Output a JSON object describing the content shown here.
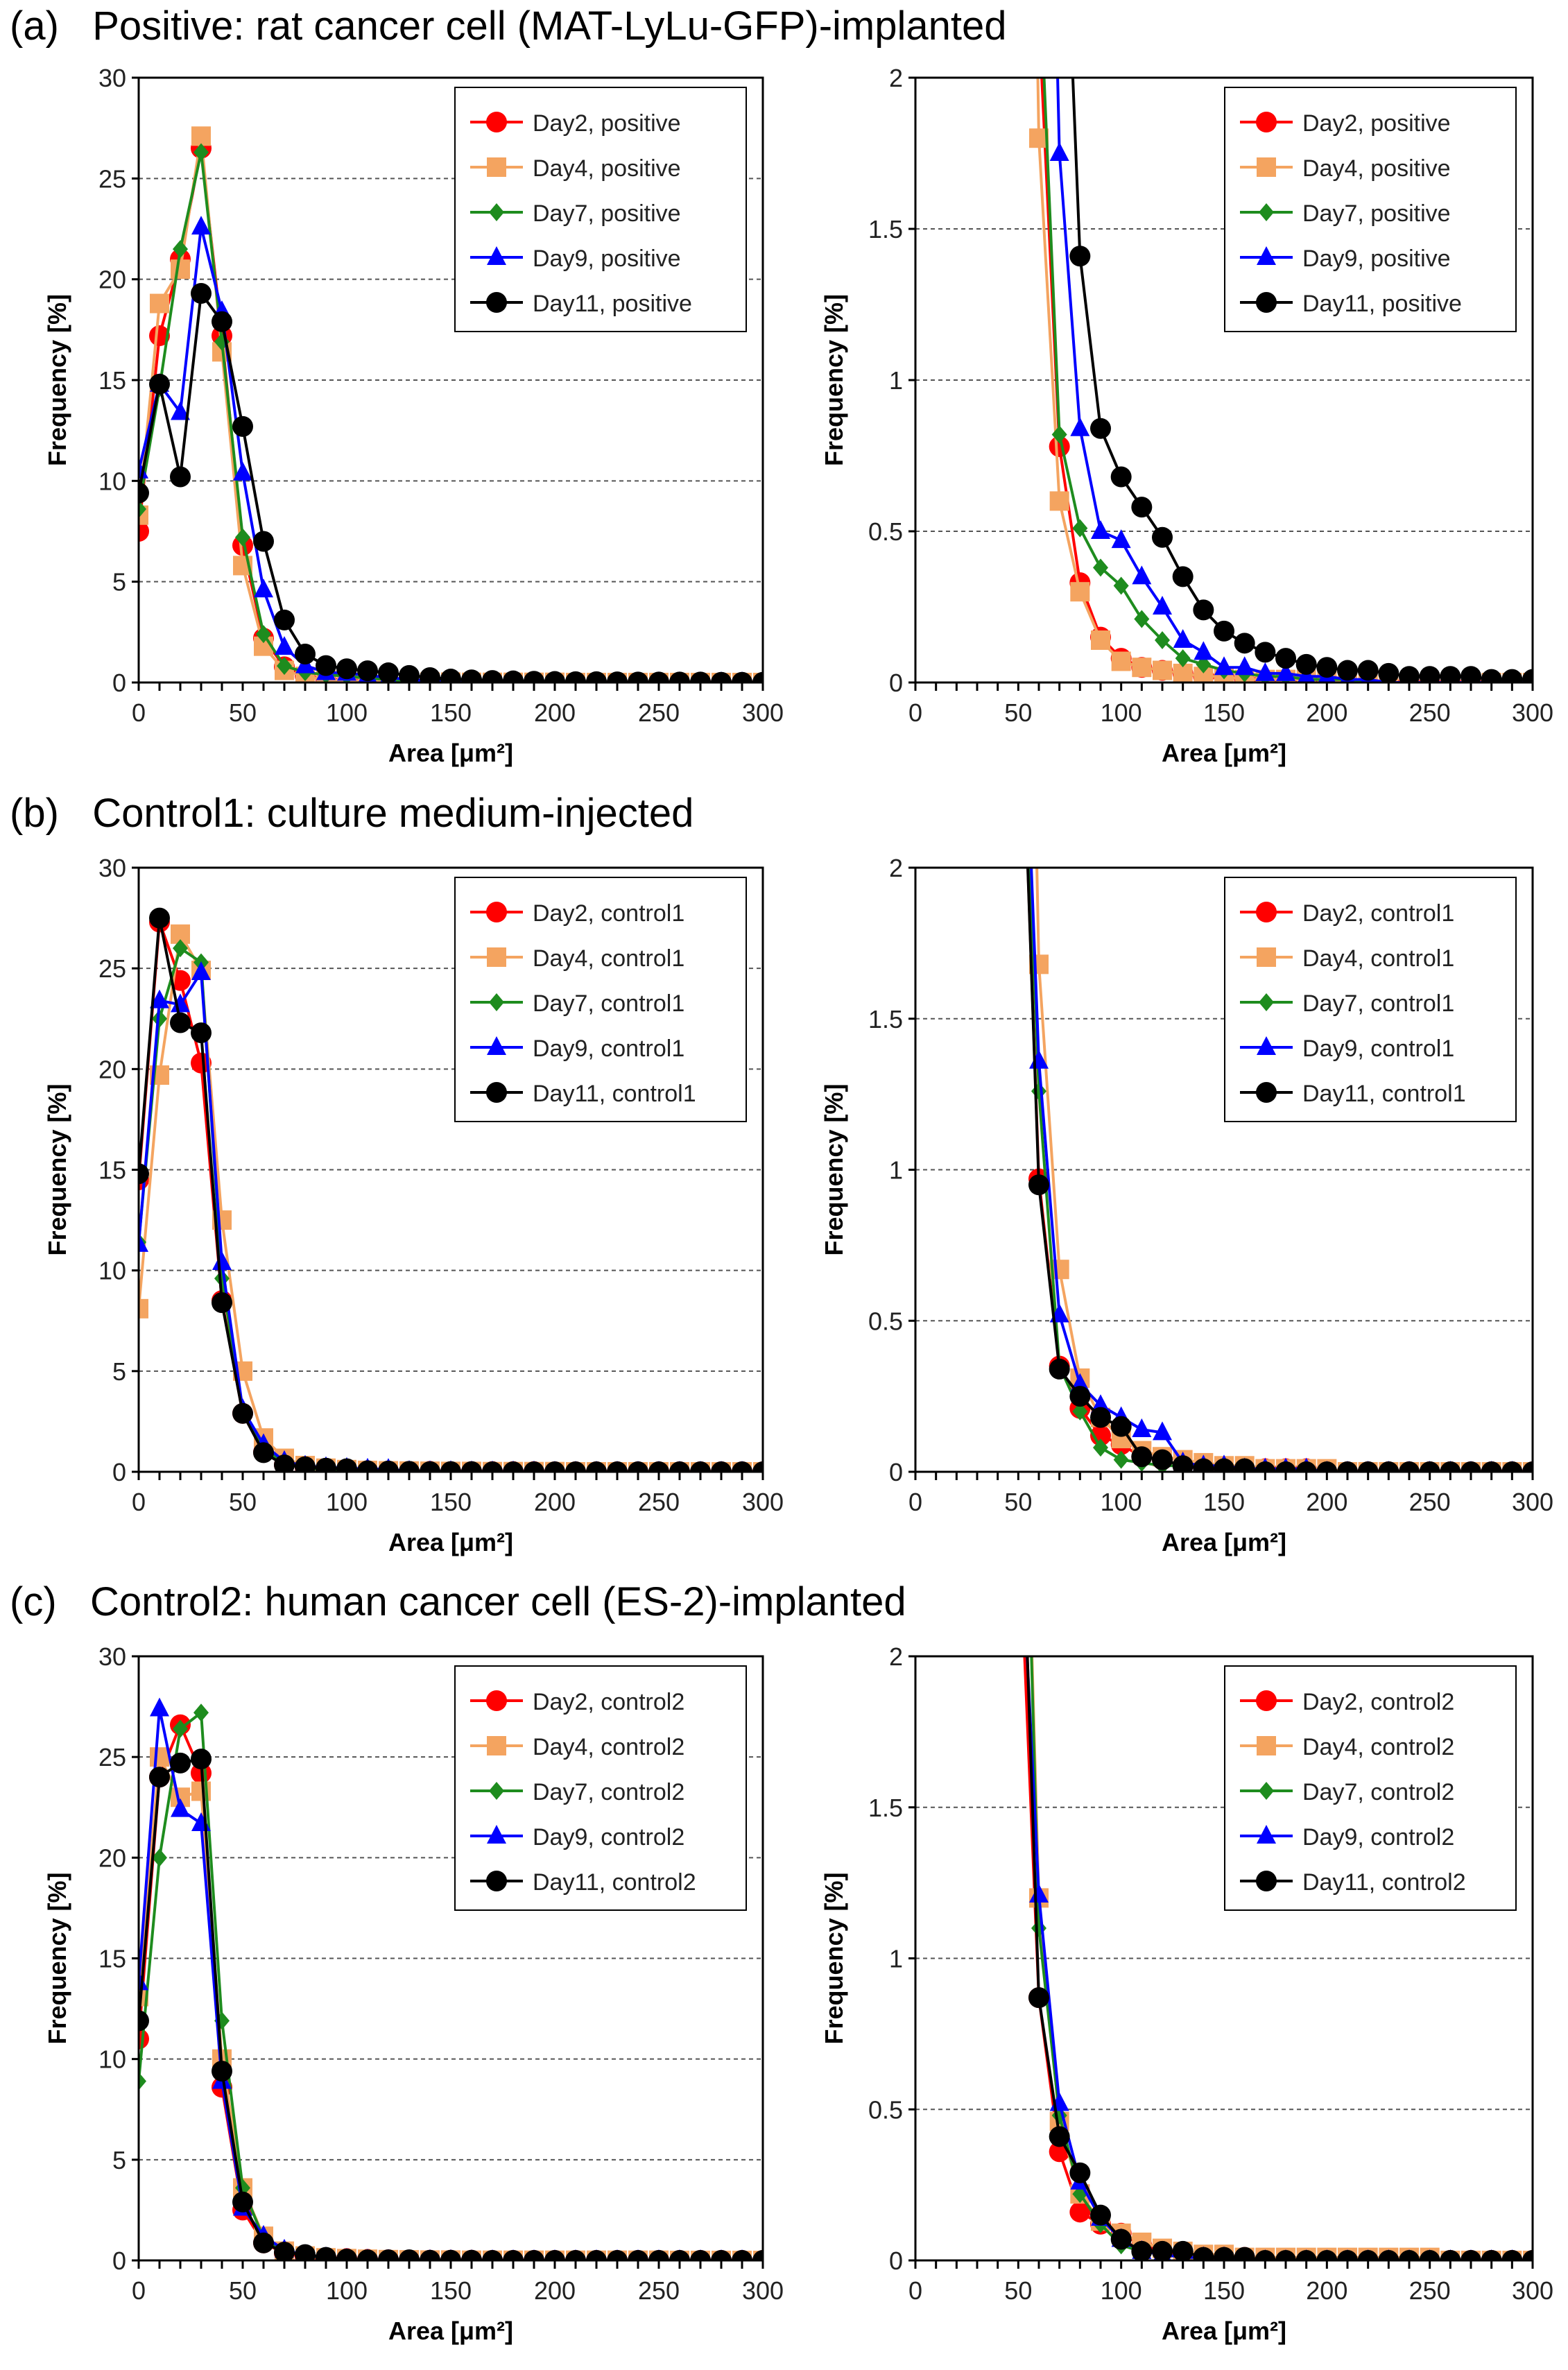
{
  "panels": [
    {
      "label": "(a)",
      "title": "Positive: rat cancer cell (MAT-LyLu-GFP)-implanted"
    },
    {
      "label": "(b)",
      "title": "Control1: culture medium-injected"
    },
    {
      "label": "(c)",
      "title": "Control2: human cancer cell (ES-2)-implanted"
    }
  ],
  "colors": {
    "Day2": "#ff0000",
    "Day4": "#f4a460",
    "Day7": "#1e8c1e",
    "Day9": "#0000ff",
    "Day11": "#000000"
  },
  "markers": {
    "Day2": "circle",
    "Day4": "square",
    "Day7": "diamond",
    "Day9": "triangle",
    "Day11": "circle"
  },
  "chart_data": [
    {
      "type": "line",
      "panel": "(a)",
      "view": "full",
      "xlabel": "Area [μm²]",
      "ylabel": "Frequency [%]",
      "xlim": [
        0,
        300
      ],
      "ylim": [
        0,
        30
      ],
      "xticks": [
        0,
        50,
        100,
        150,
        200,
        250,
        300
      ],
      "yticks": [
        0,
        5,
        10,
        15,
        20,
        25,
        30
      ],
      "legend": "top-right",
      "x": [
        0,
        10,
        20,
        30,
        40,
        50,
        60,
        70,
        80,
        90,
        100,
        110,
        120,
        130,
        140,
        150,
        160,
        170,
        180,
        190,
        200,
        210,
        220,
        230,
        240,
        250,
        260,
        270,
        280,
        290,
        300
      ],
      "series": [
        {
          "name": "Day2, positive",
          "values": [
            7.5,
            17.2,
            21,
            26.5,
            17.2,
            6.8,
            2.2,
            0.78,
            0.33,
            0.15,
            0.08,
            0.05,
            0.04,
            0.03,
            0.02,
            0.02,
            0.01,
            0.01,
            0.01,
            0.01,
            0.01,
            0,
            0,
            0,
            0,
            0,
            0,
            0,
            0,
            0,
            0
          ]
        },
        {
          "name": "Day4, positive",
          "values": [
            8.3,
            18.8,
            20.5,
            27.1,
            16.4,
            5.8,
            1.8,
            0.6,
            0.3,
            0.14,
            0.07,
            0.05,
            0.04,
            0.03,
            0.02,
            0.02,
            0.01,
            0.01,
            0.01,
            0.01,
            0.01,
            0,
            0,
            0,
            0,
            0,
            0,
            0,
            0,
            0,
            0
          ]
        },
        {
          "name": "Day7, positive",
          "values": [
            8.6,
            14.6,
            21.5,
            26.3,
            16.9,
            7.2,
            2.4,
            0.82,
            0.51,
            0.38,
            0.32,
            0.21,
            0.14,
            0.08,
            0.06,
            0.04,
            0.03,
            0.02,
            0.02,
            0.01,
            0.01,
            0.01,
            0,
            0,
            0,
            0,
            0,
            0,
            0,
            0,
            0
          ]
        },
        {
          "name": "Day9, positive",
          "values": [
            10.5,
            14.8,
            13.4,
            22.6,
            18.4,
            10.4,
            4.6,
            1.75,
            0.84,
            0.5,
            0.47,
            0.35,
            0.25,
            0.14,
            0.1,
            0.05,
            0.05,
            0.03,
            0.03,
            0.02,
            0.02,
            0.01,
            0.01,
            0,
            0,
            0,
            0,
            0,
            0,
            0,
            0
          ]
        },
        {
          "name": "Day11, positive",
          "values": [
            9.4,
            14.8,
            10.2,
            19.3,
            17.9,
            12.7,
            7.0,
            3.1,
            1.41,
            0.84,
            0.68,
            0.58,
            0.48,
            0.35,
            0.24,
            0.17,
            0.13,
            0.1,
            0.08,
            0.06,
            0.05,
            0.04,
            0.04,
            0.03,
            0.02,
            0.02,
            0.02,
            0.02,
            0.01,
            0.01,
            0.01
          ]
        }
      ]
    },
    {
      "type": "line",
      "panel": "(a)",
      "view": "zoom",
      "xlabel": "Area [μm²]",
      "ylabel": "Frequency [%]",
      "xlim": [
        0,
        300
      ],
      "ylim": [
        0,
        2
      ],
      "xticks": [
        0,
        50,
        100,
        150,
        200,
        250,
        300
      ],
      "yticks": [
        0,
        0.5,
        1,
        1.5,
        2
      ],
      "legend": "top-right"
    },
    {
      "type": "line",
      "panel": "(b)",
      "view": "full",
      "xlabel": "Area [μm²]",
      "ylabel": "Frequency [%]",
      "xlim": [
        0,
        300
      ],
      "ylim": [
        0,
        30
      ],
      "xticks": [
        0,
        50,
        100,
        150,
        200,
        250,
        300
      ],
      "yticks": [
        0,
        5,
        10,
        15,
        20,
        25,
        30
      ],
      "legend": "top-right",
      "x": [
        0,
        10,
        20,
        30,
        40,
        50,
        60,
        70,
        80,
        90,
        100,
        110,
        120,
        130,
        140,
        150,
        160,
        170,
        180,
        190,
        200,
        210,
        220,
        230,
        240,
        250,
        260,
        270,
        280,
        290,
        300
      ],
      "series": [
        {
          "name": "Day2, control1",
          "values": [
            14.5,
            27.3,
            24.4,
            20.3,
            8.5,
            2.9,
            0.97,
            0.35,
            0.21,
            0.12,
            0.09,
            0.05,
            0.04,
            0.02,
            0.02,
            0.01,
            0.01,
            0.01,
            0.01,
            0.01,
            0,
            0,
            0,
            0,
            0,
            0,
            0,
            0,
            0,
            0,
            0
          ]
        },
        {
          "name": "Day4, control1",
          "values": [
            8.1,
            19.7,
            26.7,
            24.9,
            12.5,
            5.0,
            1.68,
            0.67,
            0.31,
            0.18,
            0.11,
            0.07,
            0.05,
            0.04,
            0.03,
            0.02,
            0.02,
            0.01,
            0.01,
            0.01,
            0.01,
            0,
            0,
            0,
            0,
            0,
            0,
            0,
            0,
            0,
            0
          ]
        },
        {
          "name": "Day7, control1",
          "values": [
            11.4,
            22.5,
            26.0,
            25.3,
            9.6,
            3.0,
            1.26,
            0.35,
            0.2,
            0.08,
            0.04,
            0.03,
            0.02,
            0.02,
            0.01,
            0.01,
            0.01,
            0,
            0,
            0,
            0,
            0,
            0,
            0,
            0,
            0,
            0,
            0,
            0,
            0,
            0
          ]
        },
        {
          "name": "Day9, control1",
          "values": [
            11.3,
            23.4,
            23.2,
            24.8,
            10.4,
            3.1,
            1.36,
            0.52,
            0.29,
            0.22,
            0.18,
            0.14,
            0.13,
            0.03,
            0.02,
            0.02,
            0.01,
            0.01,
            0.01,
            0.01,
            0,
            0,
            0,
            0,
            0,
            0,
            0,
            0,
            0,
            0,
            0
          ]
        },
        {
          "name": "Day11, control1",
          "values": [
            14.8,
            27.5,
            22.3,
            21.8,
            8.4,
            2.9,
            0.95,
            0.34,
            0.25,
            0.18,
            0.15,
            0.05,
            0.04,
            0.02,
            0.01,
            0.01,
            0.01,
            0,
            0,
            0,
            0,
            0,
            0,
            0,
            0,
            0,
            0,
            0,
            0,
            0,
            0
          ]
        }
      ]
    },
    {
      "type": "line",
      "panel": "(b)",
      "view": "zoom",
      "xlabel": "Area [μm²]",
      "ylabel": "Frequency [%]",
      "xlim": [
        0,
        300
      ],
      "ylim": [
        0,
        2
      ],
      "xticks": [
        0,
        50,
        100,
        150,
        200,
        250,
        300
      ],
      "yticks": [
        0,
        0.5,
        1,
        1.5,
        2
      ],
      "legend": "top-right"
    },
    {
      "type": "line",
      "panel": "(c)",
      "view": "full",
      "xlabel": "Area [μm²]",
      "ylabel": "Frequency [%]",
      "xlim": [
        0,
        300
      ],
      "ylim": [
        0,
        30
      ],
      "xticks": [
        0,
        50,
        100,
        150,
        200,
        250,
        300
      ],
      "yticks": [
        0,
        5,
        10,
        15,
        20,
        25,
        30
      ],
      "legend": "top-right",
      "x": [
        0,
        10,
        20,
        30,
        40,
        50,
        60,
        70,
        80,
        90,
        100,
        110,
        120,
        130,
        140,
        150,
        160,
        170,
        180,
        190,
        200,
        210,
        220,
        230,
        240,
        250,
        260,
        270,
        280,
        290,
        300
      ],
      "series": [
        {
          "name": "Day2, control2",
          "values": [
            11.0,
            24.0,
            26.6,
            24.2,
            8.6,
            2.5,
            0.87,
            0.36,
            0.16,
            0.12,
            0.09,
            0.05,
            0.03,
            0.02,
            0.01,
            0.01,
            0.01,
            0,
            0,
            0,
            0,
            0,
            0,
            0,
            0,
            0,
            0,
            0,
            0,
            0,
            0
          ]
        },
        {
          "name": "Day4, control2",
          "values": [
            13.1,
            25.0,
            23.0,
            23.3,
            10.0,
            3.6,
            1.2,
            0.46,
            0.22,
            0.13,
            0.09,
            0.06,
            0.04,
            0.03,
            0.02,
            0.02,
            0.01,
            0.01,
            0.01,
            0.01,
            0.01,
            0.01,
            0.01,
            0.01,
            0.01,
            0.01,
            0,
            0,
            0,
            0,
            0
          ]
        },
        {
          "name": "Day7, control2",
          "values": [
            8.9,
            20.0,
            26.4,
            27.2,
            11.9,
            3.6,
            1.1,
            0.48,
            0.22,
            0.12,
            0.05,
            0.03,
            0.02,
            0.01,
            0.01,
            0.01,
            0,
            0,
            0,
            0,
            0,
            0,
            0,
            0,
            0,
            0,
            0,
            0,
            0,
            0,
            0
          ]
        },
        {
          "name": "Day9, control2",
          "values": [
            13.8,
            27.4,
            22.4,
            21.7,
            8.9,
            2.6,
            1.21,
            0.52,
            0.26,
            0.14,
            0.07,
            0.03,
            0.02,
            0.01,
            0.01,
            0.01,
            0,
            0,
            0,
            0,
            0,
            0,
            0,
            0,
            0,
            0,
            0,
            0,
            0,
            0,
            0
          ]
        },
        {
          "name": "Day11, control2",
          "values": [
            11.9,
            24.0,
            24.7,
            24.9,
            9.4,
            2.9,
            0.87,
            0.41,
            0.29,
            0.15,
            0.07,
            0.03,
            0.03,
            0.03,
            0.01,
            0.01,
            0.01,
            0,
            0,
            0,
            0,
            0,
            0,
            0,
            0,
            0,
            0,
            0,
            0,
            0,
            0
          ]
        }
      ]
    },
    {
      "type": "line",
      "panel": "(c)",
      "view": "zoom",
      "xlabel": "Area [μm²]",
      "ylabel": "Frequency [%]",
      "xlim": [
        0,
        300
      ],
      "ylim": [
        0,
        2
      ],
      "xticks": [
        0,
        50,
        100,
        150,
        200,
        250,
        300
      ],
      "yticks": [
        0,
        0.5,
        1,
        1.5,
        2
      ],
      "legend": "top-right"
    }
  ]
}
